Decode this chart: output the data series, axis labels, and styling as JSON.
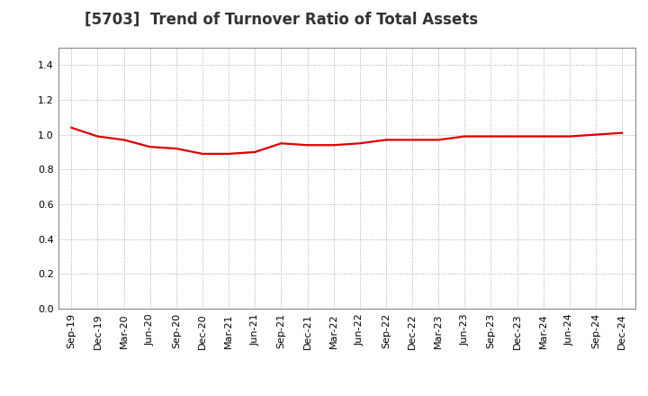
{
  "title": "[5703]  Trend of Turnover Ratio of Total Assets",
  "x_labels": [
    "Sep-19",
    "Dec-19",
    "Mar-20",
    "Jun-20",
    "Sep-20",
    "Dec-20",
    "Mar-21",
    "Jun-21",
    "Sep-21",
    "Dec-21",
    "Mar-22",
    "Jun-22",
    "Sep-22",
    "Dec-22",
    "Mar-23",
    "Jun-23",
    "Sep-23",
    "Dec-23",
    "Mar-24",
    "Jun-24",
    "Sep-24",
    "Dec-24"
  ],
  "y_values": [
    1.04,
    0.99,
    0.97,
    0.93,
    0.92,
    0.89,
    0.89,
    0.9,
    0.95,
    0.94,
    0.94,
    0.95,
    0.97,
    0.97,
    0.97,
    0.99,
    0.99,
    0.99,
    0.99,
    0.99,
    1.0,
    1.01
  ],
  "line_color": "#dd0000",
  "line_width": 1.6,
  "ylim": [
    0.0,
    1.5
  ],
  "yticks": [
    0.0,
    0.2,
    0.4,
    0.6,
    0.8,
    1.0,
    1.2,
    1.4
  ],
  "background_color": "#ffffff",
  "grid_color": "#aaaaaa",
  "title_fontsize": 12,
  "tick_fontsize": 8,
  "title_color": "#333333"
}
